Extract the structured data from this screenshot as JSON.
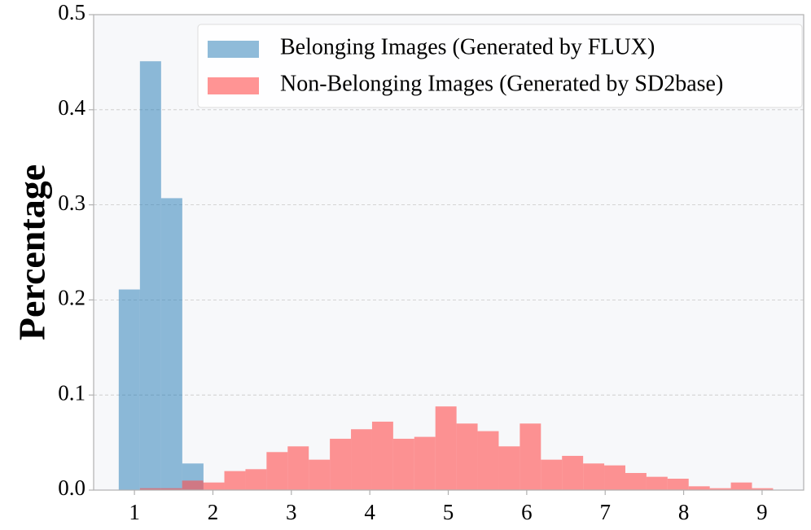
{
  "chart_data": {
    "type": "histogram",
    "y_label": "Percentage",
    "xlim": [
      0.48,
      9.53
    ],
    "ylim": [
      0,
      0.5
    ],
    "xticks": [
      1,
      2,
      3,
      4,
      5,
      6,
      7,
      8,
      9
    ],
    "yticks": [
      {
        "value": 0,
        "label": "0.0"
      },
      0.1,
      0.2,
      0.3,
      0.4,
      0.5
    ],
    "grid": true,
    "legend": "upper right",
    "series": [
      {
        "name": "Belonging Images (Generated by FLUX)",
        "color": "#1f77b4",
        "bins": [
          0.8,
          1.07,
          1.34,
          1.61,
          1.88
        ],
        "values": [
          0.211,
          0.451,
          0.307,
          0.028
        ]
      },
      {
        "name": "Non-Belonging Images (Generated by SD2base)",
        "color": "#ff4d4d",
        "bins": [
          1.07,
          1.339,
          1.608,
          1.877,
          2.146,
          2.415,
          2.684,
          2.953,
          3.222,
          3.491,
          3.76,
          4.029,
          4.298,
          4.567,
          4.836,
          5.105,
          5.374,
          5.643,
          5.912,
          6.181,
          6.45,
          6.719,
          6.988,
          7.257,
          7.526,
          7.795,
          8.064,
          8.333,
          8.602,
          8.871,
          9.14
        ],
        "values": [
          0.002,
          0.002,
          0.01,
          0.008,
          0.02,
          0.022,
          0.04,
          0.046,
          0.032,
          0.054,
          0.064,
          0.072,
          0.054,
          0.056,
          0.088,
          0.07,
          0.062,
          0.046,
          0.07,
          0.032,
          0.036,
          0.028,
          0.026,
          0.018,
          0.014,
          0.012,
          0.004,
          0.002,
          0.008,
          0.002
        ]
      }
    ]
  }
}
